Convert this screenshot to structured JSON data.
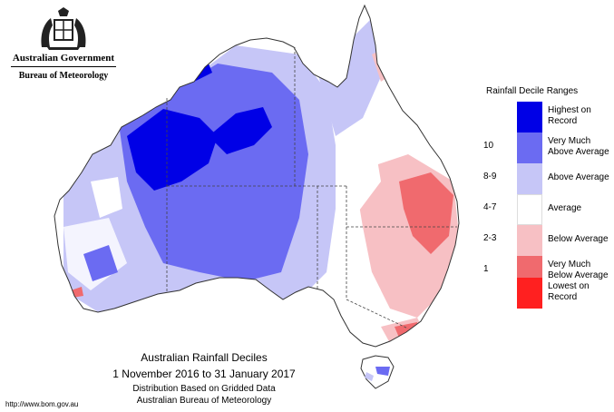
{
  "header": {
    "gov_name": "Australian Government",
    "agency": "Bureau of Meteorology"
  },
  "map": {
    "region": "Australia",
    "tint": "Rainfall decile shading"
  },
  "legend": {
    "title": "Rainfall Decile Ranges",
    "items": [
      {
        "code": "",
        "label": "Highest on Record",
        "color": "#0000e6"
      },
      {
        "code": "10",
        "label": "Very Much Above Average",
        "color": "#6b6bf2"
      },
      {
        "code": "8-9",
        "label": "Above Average",
        "color": "#c6c6f7"
      },
      {
        "code": "4-7",
        "label": "Average",
        "color": "#ffffff"
      },
      {
        "code": "2-3",
        "label": "Below Average",
        "color": "#f7c0c4"
      },
      {
        "code": "1",
        "label": "Very Much Below Average",
        "color": "#f06a6e"
      },
      {
        "code": "",
        "label": "Lowest on Record",
        "color": "#ff2020"
      }
    ]
  },
  "caption": {
    "title": "Australian Rainfall Deciles",
    "dates": "1 November 2016 to 31 January 2017",
    "line3": "Distribution Based on Gridded Data",
    "line4": "Australian Bureau of Meteorology"
  },
  "footer": {
    "url": "http://www.bom.gov.au"
  }
}
